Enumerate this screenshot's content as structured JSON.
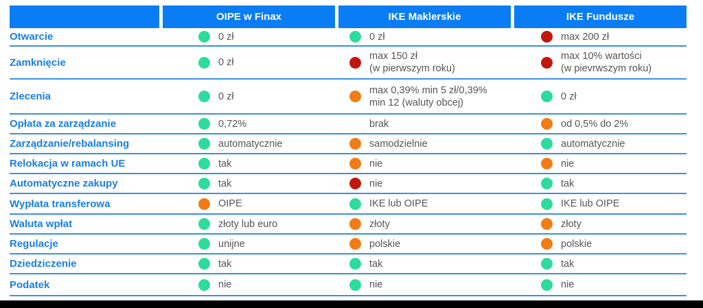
{
  "colors": {
    "header_bg": "#0a7df4",
    "label": "#1a7fe0",
    "green": "#2ddc9c",
    "orange": "#f07c16",
    "red": "#c0180f",
    "line": "#3b8fe6"
  },
  "header": {
    "columns": [
      "",
      "OIPE w Finax",
      "IKE Maklerskie",
      "IKE Fundusze"
    ]
  },
  "rows": [
    {
      "label": "Otwarcie",
      "cells": [
        {
          "text": "0 zł",
          "status": "green"
        },
        {
          "text": "0 zł",
          "status": "green"
        },
        {
          "text": "max 200 zł",
          "status": "red"
        }
      ]
    },
    {
      "label": "Zamknięcie",
      "cells": [
        {
          "text": "0 zł",
          "status": "green"
        },
        {
          "text": "max 150 zł\n(w pierwszym roku)",
          "status": "red"
        },
        {
          "text": "max 10% wartości\n(w pievrwszym roku)",
          "status": "red"
        }
      ]
    },
    {
      "label": "Zlecenia",
      "cells": [
        {
          "text": "0 zł",
          "status": "green"
        },
        {
          "text": "max 0,39% min 5 zł/0,39%\nmin 12 (waluty obcej)",
          "status": "orange"
        },
        {
          "text": "0 zł",
          "status": "green"
        }
      ]
    },
    {
      "label": "Opłata za zarządzanie",
      "cells": [
        {
          "text": "0,72%",
          "status": "green"
        },
        {
          "text": "brak",
          "status": "none"
        },
        {
          "text": "od 0,5% do 2%",
          "status": "orange"
        }
      ]
    },
    {
      "label": "Zarządzanie/rebalansing",
      "cells": [
        {
          "text": "automatycznie",
          "status": "green"
        },
        {
          "text": "samodzielnie",
          "status": "orange"
        },
        {
          "text": "automatycznie",
          "status": "green"
        }
      ]
    },
    {
      "label": "Relokacja w ramach UE",
      "cells": [
        {
          "text": "tak",
          "status": "green"
        },
        {
          "text": "nie",
          "status": "orange"
        },
        {
          "text": "nie",
          "status": "orange"
        }
      ]
    },
    {
      "label": "Automatyczne zakupy",
      "cells": [
        {
          "text": "tak",
          "status": "green"
        },
        {
          "text": "nie",
          "status": "red"
        },
        {
          "text": "tak",
          "status": "green"
        }
      ]
    },
    {
      "label": "Wypłata transferowa",
      "cells": [
        {
          "text": "OIPE",
          "status": "orange"
        },
        {
          "text": "IKE lub OIPE",
          "status": "green"
        },
        {
          "text": "IKE lub OIPE",
          "status": "green"
        }
      ]
    },
    {
      "label": "Waluta wpłat",
      "cells": [
        {
          "text": "złoty lub euro",
          "status": "green"
        },
        {
          "text": "złoty",
          "status": "orange"
        },
        {
          "text": "złoty",
          "status": "orange"
        }
      ]
    },
    {
      "label": "Regulacje",
      "cells": [
        {
          "text": "unijne",
          "status": "green"
        },
        {
          "text": "polskie",
          "status": "orange"
        },
        {
          "text": "polskie",
          "status": "orange"
        }
      ]
    },
    {
      "label": "Dziedziczenie",
      "cells": [
        {
          "text": "tak",
          "status": "green"
        },
        {
          "text": "tak",
          "status": "green"
        },
        {
          "text": "tak",
          "status": "green"
        }
      ]
    },
    {
      "label": "Podatek",
      "cells": [
        {
          "text": "nie",
          "status": "green"
        },
        {
          "text": "nie",
          "status": "green"
        },
        {
          "text": "nie",
          "status": "green"
        }
      ]
    }
  ]
}
